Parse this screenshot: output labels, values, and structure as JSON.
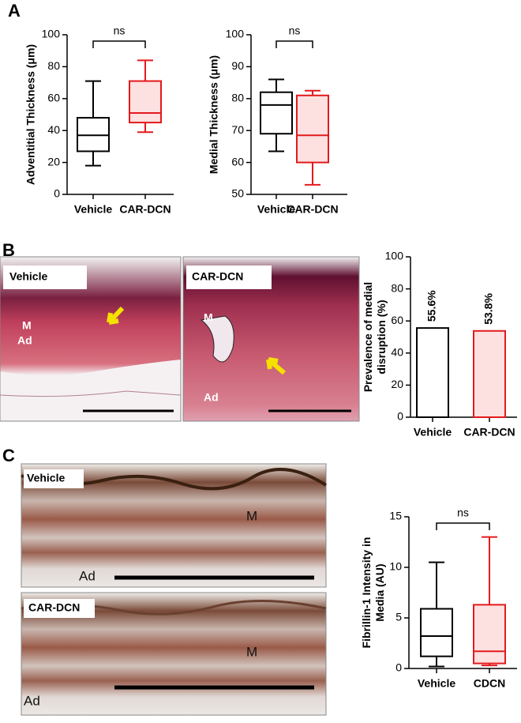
{
  "panel_labels": [
    "A",
    "B",
    "C"
  ],
  "images": [
    {
      "label": "Vehicle",
      "regions": [
        "M",
        "Ad"
      ]
    },
    {
      "label": "CAR-DCN",
      "regions": [
        "M",
        "Ad"
      ]
    },
    {
      "label": "Vehicle",
      "regions": [
        "M",
        "Ad"
      ]
    },
    {
      "label": "CAR-DCN",
      "regions": [
        "M",
        "Ad"
      ]
    }
  ],
  "chart_data": [
    {
      "type": "box",
      "ylabel": [
        "Adventitial Thickness (μm)"
      ],
      "annotation": "ns",
      "ylim": [
        0,
        100
      ],
      "yticks": [
        0,
        20,
        40,
        60,
        80,
        100
      ],
      "categories": [
        "Vehicle",
        "CAR-DCN"
      ],
      "colors": [
        "#000000",
        "#e31a1c"
      ],
      "fills": [
        "#ffffff",
        "#fde0e0"
      ],
      "boxes": [
        {
          "min": 18,
          "q1": 27,
          "median": 37,
          "q3": 48,
          "max": 71
        },
        {
          "min": 39,
          "q1": 45,
          "median": 51,
          "q3": 71,
          "max": 84
        }
      ]
    },
    {
      "type": "box",
      "ylabel": [
        "Medial Thickness (μm)"
      ],
      "annotation": "ns",
      "ylim": [
        50,
        100
      ],
      "yticks": [
        50,
        60,
        70,
        80,
        90,
        100
      ],
      "categories": [
        "Vehicle",
        "CAR-DCN"
      ],
      "colors": [
        "#000000",
        "#e31a1c"
      ],
      "fills": [
        "#ffffff",
        "#fde0e0"
      ],
      "boxes": [
        {
          "min": 63.5,
          "q1": 69,
          "median": 78,
          "q3": 82,
          "max": 86
        },
        {
          "min": 53,
          "q1": 60,
          "median": 68.5,
          "q3": 81,
          "max": 82.5
        }
      ]
    },
    {
      "type": "bar",
      "ylabel": [
        "Prevalence of medial",
        "disruption (%)"
      ],
      "ylim": [
        0,
        100
      ],
      "yticks": [
        0,
        20,
        40,
        60,
        80,
        100
      ],
      "categories": [
        "Vehicle",
        "CAR-DCN"
      ],
      "colors": [
        "#000000",
        "#e31a1c"
      ],
      "fills": [
        "#ffffff",
        "#fde0e0"
      ],
      "values": [
        55.6,
        53.8
      ],
      "value_labels": [
        "55.6%",
        "53.8%"
      ]
    },
    {
      "type": "box",
      "ylabel": [
        "Fibrillin-1 Intensity in",
        "Media (AU)"
      ],
      "annotation": "ns",
      "ylim": [
        0,
        15
      ],
      "yticks": [
        0,
        5,
        10,
        15
      ],
      "categories": [
        "Vehicle",
        "CDCN"
      ],
      "colors": [
        "#000000",
        "#e31a1c"
      ],
      "fills": [
        "#ffffff",
        "#fde0e0"
      ],
      "boxes": [
        {
          "min": 0.2,
          "q1": 1.2,
          "median": 3.2,
          "q3": 5.9,
          "max": 10.5
        },
        {
          "min": 0.3,
          "q1": 0.5,
          "median": 1.7,
          "q3": 6.3,
          "max": 13
        }
      ]
    }
  ]
}
